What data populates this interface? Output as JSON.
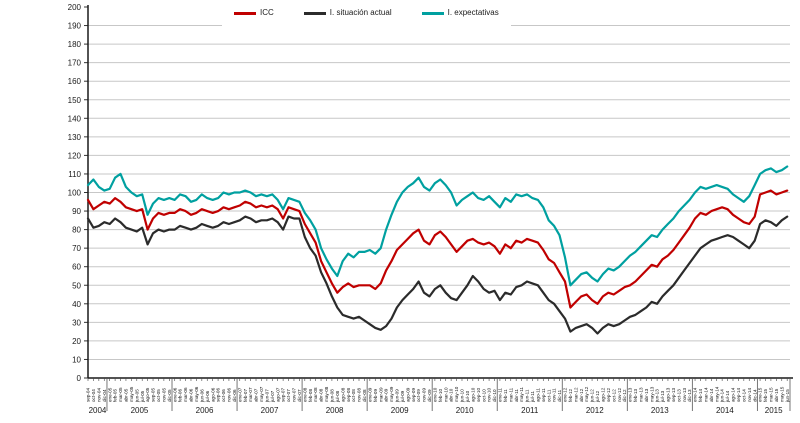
{
  "legend": {
    "items": [
      {
        "label": "ICC",
        "color": "#C00000"
      },
      {
        "label": "I. situación actual",
        "color": "#2B2B2B"
      },
      {
        "label": "I. expectativas",
        "color": "#00A0A0"
      }
    ]
  },
  "chart_data": {
    "type": "line",
    "grid": true,
    "legend_position": "top",
    "ylim": [
      0,
      200
    ],
    "ytick_step": 10,
    "categories": [
      "sep-04",
      "oct-04",
      "nov-04",
      "dic-04",
      "ene-05",
      "feb-05",
      "mar-05",
      "abr-05",
      "may-05",
      "jun-05",
      "jul-05",
      "ago-05",
      "sep-05",
      "oct-05",
      "nov-05",
      "dic-05",
      "ene-06",
      "feb-06",
      "mar-06",
      "abr-06",
      "may-06",
      "jun-06",
      "jul-06",
      "ago-06",
      "sep-06",
      "oct-06",
      "nov-06",
      "dic-06",
      "ene-07",
      "feb-07",
      "mar-07",
      "abr-07",
      "may-07",
      "jun-07",
      "jul-07",
      "ago-07",
      "sep-07",
      "oct-07",
      "nov-07",
      "dic-07",
      "ene-08",
      "feb-08",
      "mar-08",
      "abr-08",
      "may-08",
      "jun-08",
      "jul-08",
      "ago-08",
      "sep-08",
      "oct-08",
      "nov-08",
      "dic-08",
      "ene-09",
      "feb-09",
      "mar-09",
      "abr-09",
      "may-09",
      "jun-09",
      "jul-09",
      "ago-09",
      "sep-09",
      "oct-09",
      "nov-09",
      "dic-09",
      "ene-10",
      "feb-10",
      "mar-10",
      "abr-10",
      "may-10",
      "jun-10",
      "jul-10",
      "ago-10",
      "sep-10",
      "oct-10",
      "nov-10",
      "dic-10",
      "ene-11",
      "feb-11",
      "mar-11",
      "abr-11",
      "may-11",
      "jun-11",
      "jul-11",
      "ago-11",
      "sep-11",
      "oct-11",
      "nov-11",
      "dic-11",
      "ene-12",
      "feb-12",
      "mar-12",
      "abr-12",
      "may-12",
      "jun-12",
      "jul-12",
      "ago-12",
      "sep-12",
      "oct-12",
      "nov-12",
      "dic-12",
      "ene-13",
      "feb-13",
      "mar-13",
      "abr-13",
      "may-13",
      "jun-13",
      "jul-13",
      "ago-13",
      "sep-13",
      "oct-13",
      "nov-13",
      "dic-13",
      "ene-14",
      "feb-14",
      "mar-14",
      "abr-14",
      "may-14",
      "jun-14",
      "jul-14",
      "ago-14",
      "sep-14",
      "oct-14",
      "nov-14",
      "dic-14",
      "ene-15",
      "feb-15",
      "mar-15",
      "abr-15",
      "may-15",
      "jun-15"
    ],
    "year_groups": [
      {
        "year": "2004",
        "months": 4
      },
      {
        "year": "2005",
        "months": 12
      },
      {
        "year": "2006",
        "months": 12
      },
      {
        "year": "2007",
        "months": 12
      },
      {
        "year": "2008",
        "months": 12
      },
      {
        "year": "2009",
        "months": 12
      },
      {
        "year": "2010",
        "months": 12
      },
      {
        "year": "2011",
        "months": 12
      },
      {
        "year": "2012",
        "months": 12
      },
      {
        "year": "2013",
        "months": 12
      },
      {
        "year": "2014",
        "months": 12
      },
      {
        "year": "2015",
        "months": 6
      }
    ],
    "series": [
      {
        "name": "ICC",
        "color": "#C00000",
        "values": [
          96,
          91,
          93,
          95,
          94,
          97,
          95,
          92,
          91,
          90,
          91,
          80,
          86,
          89,
          88,
          89,
          89,
          91,
          90,
          88,
          89,
          91,
          90,
          89,
          90,
          92,
          91,
          92,
          93,
          95,
          94,
          92,
          93,
          92,
          93,
          91,
          86,
          92,
          91,
          90,
          83,
          78,
          73,
          63,
          57,
          51,
          46,
          49,
          51,
          49,
          50,
          50,
          50,
          48,
          51,
          58,
          63,
          69,
          72,
          75,
          78,
          80,
          74,
          72,
          77,
          79,
          76,
          72,
          68,
          71,
          74,
          75,
          73,
          72,
          73,
          71,
          67,
          72,
          70,
          74,
          73,
          75,
          74,
          73,
          69,
          64,
          62,
          57,
          52,
          38,
          41,
          44,
          45,
          42,
          40,
          44,
          46,
          45,
          47,
          49,
          50,
          52,
          55,
          58,
          61,
          60,
          64,
          66,
          69,
          73,
          77,
          81,
          86,
          89,
          88,
          90,
          91,
          92,
          91,
          88,
          86,
          84,
          83,
          87,
          99,
          100,
          101,
          99,
          100,
          101
        ]
      },
      {
        "name": "I. situación actual",
        "color": "#2B2B2B",
        "values": [
          86,
          81,
          82,
          84,
          83,
          86,
          84,
          81,
          80,
          79,
          81,
          72,
          78,
          80,
          79,
          80,
          80,
          82,
          81,
          80,
          81,
          83,
          82,
          81,
          82,
          84,
          83,
          84,
          85,
          87,
          86,
          84,
          85,
          85,
          86,
          84,
          80,
          87,
          86,
          86,
          76,
          70,
          66,
          57,
          51,
          44,
          38,
          34,
          33,
          32,
          33,
          31,
          29,
          27,
          26,
          28,
          32,
          38,
          42,
          45,
          48,
          52,
          46,
          44,
          48,
          50,
          46,
          43,
          42,
          46,
          50,
          55,
          52,
          48,
          46,
          47,
          42,
          46,
          45,
          49,
          50,
          52,
          51,
          50,
          46,
          42,
          40,
          36,
          32,
          25,
          27,
          28,
          29,
          27,
          24,
          27,
          29,
          28,
          29,
          31,
          33,
          34,
          36,
          38,
          41,
          40,
          44,
          47,
          50,
          54,
          58,
          62,
          66,
          70,
          72,
          74,
          75,
          76,
          77,
          76,
          74,
          72,
          70,
          74,
          83,
          85,
          84,
          82,
          85,
          87
        ]
      },
      {
        "name": "I. expectativas",
        "color": "#00A0A0",
        "values": [
          104,
          107,
          103,
          101,
          102,
          108,
          110,
          103,
          100,
          98,
          99,
          88,
          94,
          97,
          96,
          97,
          96,
          99,
          98,
          95,
          96,
          99,
          97,
          96,
          97,
          100,
          99,
          100,
          100,
          101,
          100,
          98,
          99,
          98,
          99,
          96,
          91,
          97,
          96,
          95,
          89,
          85,
          80,
          70,
          64,
          59,
          55,
          63,
          67,
          65,
          68,
          68,
          69,
          67,
          70,
          80,
          88,
          95,
          100,
          103,
          105,
          108,
          103,
          101,
          105,
          107,
          104,
          100,
          93,
          96,
          98,
          100,
          97,
          96,
          98,
          95,
          92,
          97,
          95,
          99,
          98,
          99,
          97,
          96,
          92,
          85,
          82,
          77,
          65,
          50,
          53,
          56,
          57,
          54,
          52,
          56,
          59,
          58,
          60,
          63,
          66,
          68,
          71,
          74,
          77,
          76,
          80,
          83,
          86,
          90,
          93,
          96,
          100,
          103,
          102,
          103,
          104,
          103,
          102,
          99,
          97,
          95,
          98,
          104,
          110,
          112,
          113,
          111,
          112,
          114
        ]
      }
    ]
  }
}
